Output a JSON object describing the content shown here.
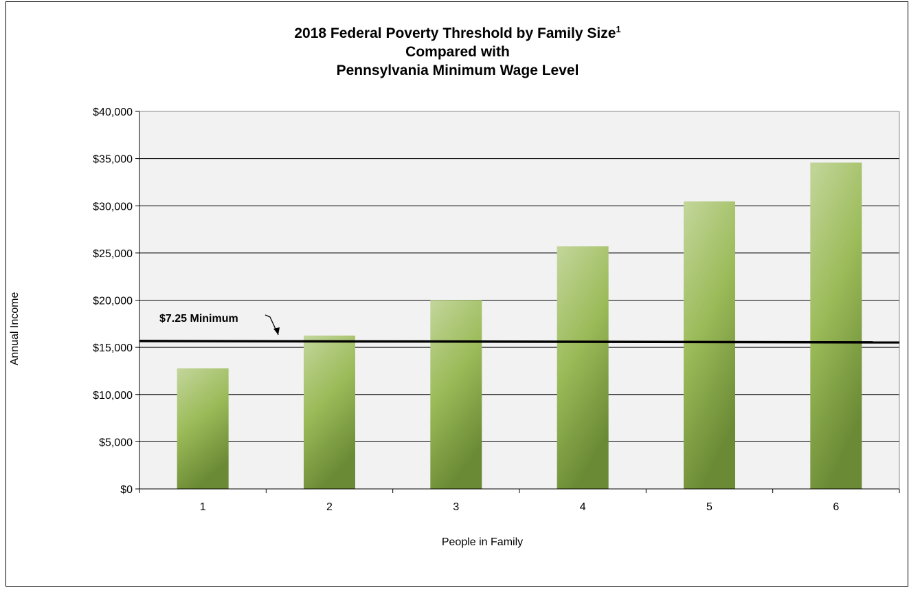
{
  "chart_data": {
    "type": "bar",
    "title_lines": [
      "2018 Federal Poverty Threshold by Family Size",
      "Compared with",
      "Pennsylvania Minimum Wage Level"
    ],
    "title_footnote": "1",
    "xlabel": "People in Family",
    "ylabel": "Annual Income",
    "categories": [
      "1",
      "2",
      "3",
      "4",
      "5",
      "6"
    ],
    "values": [
      12784,
      16247,
      20022,
      25701,
      30468,
      34577
    ],
    "ylim": [
      0,
      40000
    ],
    "yticks": [
      0,
      5000,
      10000,
      15000,
      20000,
      25000,
      30000,
      35000,
      40000
    ],
    "ytick_labels": [
      "$0",
      "$5,000",
      "$10,000",
      "$15,000",
      "$20,000",
      "$25,000",
      "$30,000",
      "$35,000",
      "$40,000"
    ],
    "grid": true,
    "reference_line": {
      "label": "$7.25 Minimum",
      "value": 15600
    },
    "colors": {
      "bar_top": "#c3d69b",
      "bar_mid": "#9bbb59",
      "bar_bottom": "#6b8a35",
      "plot_bg": "#f2f2f2"
    }
  }
}
